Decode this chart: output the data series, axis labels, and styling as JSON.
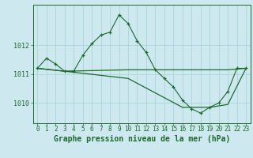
{
  "background_color": "#cde8ee",
  "grid_color": "#a8d4dc",
  "line_color": "#1a6b2a",
  "title": "Graphe pression niveau de la mer (hPa)",
  "xlim": [
    -0.5,
    23.5
  ],
  "ylim": [
    1009.3,
    1013.4
  ],
  "yticks": [
    1010,
    1011,
    1012
  ],
  "xticks": [
    0,
    1,
    2,
    3,
    4,
    5,
    6,
    7,
    8,
    9,
    10,
    11,
    12,
    13,
    14,
    15,
    16,
    17,
    18,
    19,
    20,
    21,
    22,
    23
  ],
  "series1_x": [
    0,
    1,
    2,
    3,
    4,
    5,
    6,
    7,
    8,
    9,
    10,
    11,
    12,
    13,
    14,
    15,
    16,
    17,
    18,
    19,
    20,
    21,
    22,
    23
  ],
  "series1_y": [
    1011.2,
    1011.55,
    1011.35,
    1011.1,
    1011.1,
    1011.65,
    1012.05,
    1012.35,
    1012.45,
    1013.05,
    1012.75,
    1012.15,
    1011.75,
    1011.15,
    1010.85,
    1010.55,
    1010.1,
    1009.8,
    1009.65,
    1009.85,
    1010.0,
    1010.4,
    1011.2,
    1011.2
  ],
  "series2_x": [
    0,
    3,
    10,
    16,
    21,
    23
  ],
  "series2_y": [
    1011.2,
    1011.1,
    1011.15,
    1011.15,
    1011.15,
    1011.2
  ],
  "series3_x": [
    0,
    3,
    10,
    16,
    19,
    21,
    23
  ],
  "series3_y": [
    1011.2,
    1011.1,
    1010.85,
    1009.85,
    1009.85,
    1009.95,
    1011.2
  ],
  "title_fontsize": 7.0,
  "tick_fontsize": 5.5,
  "ytick_fontsize": 6.0
}
